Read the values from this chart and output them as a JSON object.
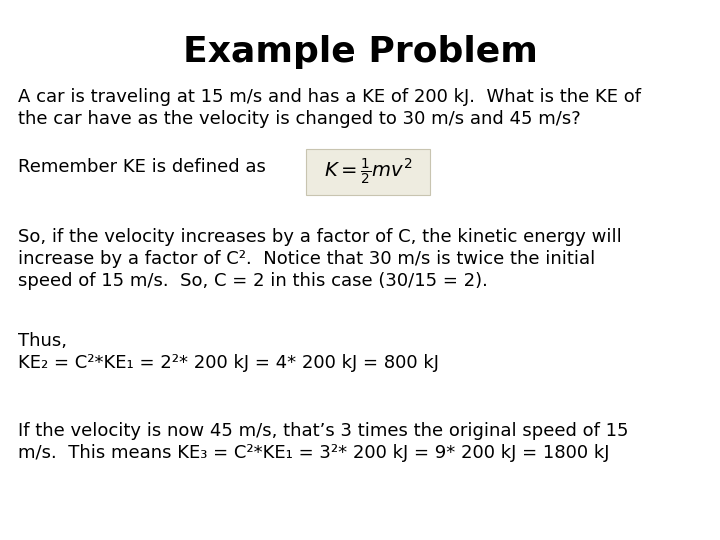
{
  "title": "Example Problem",
  "title_fontsize": 26,
  "title_fontweight": "bold",
  "title_fontfamily": "DejaVu Sans",
  "body_fontsize": 13.0,
  "body_fontfamily": "DejaVu Sans",
  "background_color": "#ffffff",
  "text_color": "#000000",
  "line1": "A car is traveling at 15 m/s and has a KE of 200 kJ.  What is the KE of",
  "line2": "the car have as the velocity is changed to 30 m/s and 45 m/s?",
  "line3": "Remember KE is defined as",
  "formula": "$K = \\frac{1}{2}mv^2$",
  "formula_box_color": "#eeece0",
  "formula_box_edge": "#c8c4b0",
  "line4": "So, if the velocity increases by a factor of C, the kinetic energy will",
  "line5": "increase by a factor of C².  Notice that 30 m/s is twice the initial",
  "line6": "speed of 15 m/s.  So, C = 2 in this case (30/15 = 2).",
  "line7": "Thus,",
  "line8": "KE₂ = C²*KE₁ = 2²* 200 kJ = 4* 200 kJ = 800 kJ",
  "line9": "If the velocity is now 45 m/s, that’s 3 times the original speed of 15",
  "line10": "m/s.  This means KE₃ = C²*KE₁ = 3²* 200 kJ = 9* 200 kJ = 1800 kJ"
}
